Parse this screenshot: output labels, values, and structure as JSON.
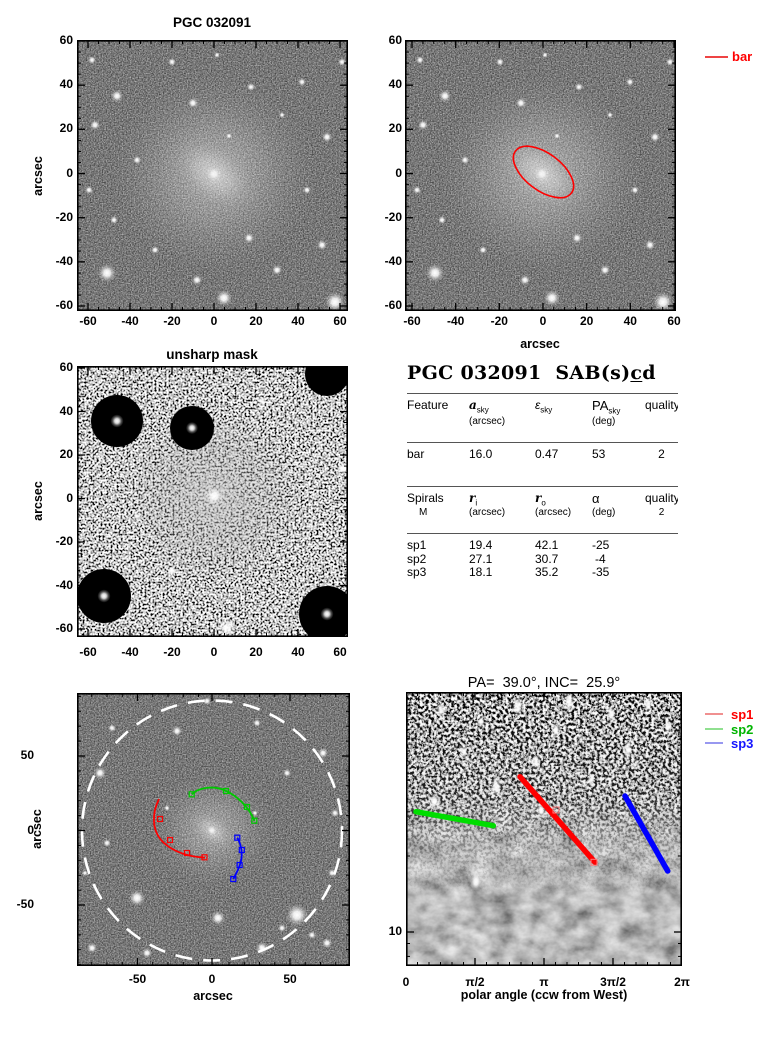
{
  "figure": {
    "p1": {
      "title": "PGC 032091",
      "ylabel": "arcsec",
      "yticks": [
        "60",
        "40",
        "20",
        "0",
        "-20",
        "-40",
        "-60"
      ],
      "xticks": [
        "-60",
        "-40",
        "-20",
        "0",
        "20",
        "40",
        "60"
      ]
    },
    "p2": {
      "xlabel": "arcsec",
      "legend_label": "bar",
      "yticks": [
        "60",
        "40",
        "20",
        "0",
        "-20",
        "-40",
        "-60"
      ],
      "xticks": [
        "-60",
        "-40",
        "-20",
        "0",
        "20",
        "40",
        "60"
      ]
    },
    "p3": {
      "title": "unsharp mask",
      "ylabel": "arcsec",
      "yticks": [
        "60",
        "40",
        "20",
        "0",
        "-20",
        "-40",
        "-60"
      ],
      "xticks": [
        "-60",
        "-40",
        "-20",
        "0",
        "20",
        "40",
        "60"
      ]
    },
    "table": {
      "title_pre": "PGC 032091  SAB(s)",
      "title_c": "c",
      "title_post": "d",
      "feature": {
        "h1": [
          "Feature",
          "a",
          "ε",
          "PA",
          "quality"
        ],
        "sub_a": "sky",
        "sub_e": "sky",
        "sub_pa": "sky",
        "unit_a": "(arcsec)",
        "unit_pa": "(deg)",
        "rows": [
          {
            "name": "bar",
            "a": "16.0",
            "e": "0.47",
            "pa": "53",
            "q": "2"
          }
        ]
      },
      "spirals": {
        "h1": [
          "Spirals",
          "r",
          "r",
          "α",
          "quality"
        ],
        "sub_ri": "i",
        "sub_ro": "o",
        "h2_m": "M",
        "unit_ri": "(arcsec)",
        "unit_ro": "(arcsec)",
        "unit_alpha": "(deg)",
        "h2_q": "2",
        "rows": [
          {
            "name": "sp1",
            "ri": "19.4",
            "ro": "42.1",
            "alpha": "-25"
          },
          {
            "name": "sp2",
            "ri": "27.1",
            "ro": "30.7",
            "alpha": "-4"
          },
          {
            "name": "sp3",
            "ri": "18.1",
            "ro": "35.2",
            "alpha": "-35"
          }
        ]
      }
    },
    "p5": {
      "ylabel": "arcsec",
      "xlabel": "arcsec",
      "yticks": [
        "50",
        "0",
        "-50"
      ],
      "xticks": [
        "-50",
        "0",
        "50"
      ]
    },
    "p6": {
      "title": "PA=  39.0°, INC=  25.9°",
      "xlabel": "polar angle (ccw from West)",
      "xticks": [
        "0",
        "π/2",
        "π",
        "3π/2",
        "2π"
      ],
      "yticks": [
        "10"
      ],
      "legend": [
        {
          "label": "sp1"
        },
        {
          "label": "sp2"
        },
        {
          "label": "sp3"
        }
      ]
    }
  },
  "colors": {
    "bar": "#ff0000",
    "sp1": "#ff0000",
    "sp2": "#00b400",
    "sp3": "#1414ff",
    "sp1_legend_line": "#f09090",
    "sp2_legend_line": "#90e090",
    "sp3_legend_line": "#9898f0",
    "dashed_circle": "#ffffff"
  },
  "chart_data": [
    {
      "type": "heatmap",
      "panel": "top-left",
      "title": "PGC 032091",
      "xlabel": "",
      "ylabel": "arcsec",
      "xlim": [
        -65,
        65
      ],
      "ylim": [
        -65,
        65
      ],
      "xticks": [
        -60,
        -40,
        -20,
        0,
        20,
        40,
        60
      ],
      "yticks": [
        60,
        40,
        20,
        0,
        -20,
        -40,
        -60
      ],
      "description": "grayscale sky image of galaxy PGC 032091 with diffuse disk and field stars"
    },
    {
      "type": "heatmap",
      "panel": "top-right",
      "title": "",
      "xlabel": "arcsec",
      "ylabel": "",
      "xlim": [
        -65,
        65
      ],
      "ylim": [
        -65,
        65
      ],
      "xticks": [
        -60,
        -40,
        -20,
        0,
        20,
        40,
        60
      ],
      "yticks": [
        60,
        40,
        20,
        0,
        -20,
        -40,
        -60
      ],
      "legend": [
        {
          "label": "bar",
          "color": "#ff0000"
        }
      ],
      "overlay_ellipse": {
        "name": "bar",
        "a_arcsec": 16.0,
        "ellipticity": 0.47,
        "pa_deg": 53,
        "center": [
          0,
          0
        ]
      }
    },
    {
      "type": "heatmap",
      "panel": "middle-left",
      "title": "unsharp mask",
      "xlabel": "",
      "ylabel": "arcsec",
      "xlim": [
        -65,
        65
      ],
      "ylim": [
        -65,
        65
      ],
      "xticks": [
        -60,
        -40,
        -20,
        0,
        20,
        40,
        60
      ],
      "yticks": [
        60,
        40,
        20,
        0,
        -20,
        -40,
        -60
      ],
      "description": "high-contrast unsharp-masked version of the same field"
    },
    {
      "type": "table",
      "panel": "middle-right",
      "title": "PGC 032091 SAB(s)cd",
      "sections": [
        {
          "columns": [
            "Feature",
            "a_sky (arcsec)",
            "ε_sky",
            "PA_sky (deg)",
            "quality"
          ],
          "rows": [
            [
              "bar",
              16.0,
              0.47,
              53,
              2
            ]
          ]
        },
        {
          "columns": [
            "Spirals M",
            "r_i (arcsec)",
            "r_o (arcsec)",
            "α (deg)",
            "quality 2"
          ],
          "rows": [
            [
              "sp1",
              19.4,
              42.1,
              -25
            ],
            [
              "sp2",
              27.1,
              30.7,
              -4
            ],
            [
              "sp3",
              18.1,
              35.2,
              -35
            ]
          ]
        }
      ]
    },
    {
      "type": "heatmap",
      "panel": "bottom-left",
      "title": "",
      "xlabel": "arcsec",
      "ylabel": "arcsec",
      "xlim": [
        -92,
        92
      ],
      "ylim": [
        -92,
        92
      ],
      "xticks": [
        -50,
        0,
        50
      ],
      "yticks": [
        50,
        0,
        -50
      ],
      "overlays": [
        {
          "name": "outer-circle",
          "shape": "dashed-circle",
          "radius_arcsec": 85,
          "color": "#ffffff"
        },
        {
          "name": "sp1",
          "shape": "spiral-arc",
          "color": "#ff0000",
          "r_inner": 19.4,
          "r_outer": 42.1
        },
        {
          "name": "sp2",
          "shape": "spiral-arc",
          "color": "#00c000",
          "r_inner": 27.1,
          "r_outer": 30.7
        },
        {
          "name": "sp3",
          "shape": "spiral-arc",
          "color": "#0000ff",
          "r_inner": 18.1,
          "r_outer": 35.2
        }
      ]
    },
    {
      "type": "heatmap",
      "panel": "bottom-right",
      "title": "PA=  39.0°, INC=  25.9°",
      "pa_deg": 39.0,
      "inc_deg": 25.9,
      "xlabel": "polar angle (ccw from West)",
      "ylabel": "",
      "yscale": "log",
      "xticks": [
        "0",
        "π/2",
        "π",
        "3π/2",
        "2π"
      ],
      "yticks": [
        10
      ],
      "ylim_approx": [
        7.5,
        90
      ],
      "legend_position": "right-outside",
      "legend": [
        {
          "label": "sp1",
          "color": "#ff0000"
        },
        {
          "label": "sp2",
          "color": "#00b400"
        },
        {
          "label": "sp3",
          "color": "#1414ff"
        }
      ],
      "series": [
        {
          "name": "sp1",
          "type": "line",
          "r_range": [
            42.1,
            19.4
          ],
          "pitch_deg": -25,
          "x_range_rad": [
            "~0.83π",
            "~1.37π"
          ]
        },
        {
          "name": "sp2",
          "type": "line",
          "r_range": [
            27.1,
            30.7
          ],
          "pitch_deg": -4,
          "x_range_rad": [
            "~0.07π",
            "~0.63π"
          ]
        },
        {
          "name": "sp3",
          "type": "line",
          "r_range": [
            35.2,
            18.1
          ],
          "pitch_deg": -35,
          "x_range_rad": [
            "~1.59π",
            "~1.90π"
          ]
        }
      ]
    }
  ]
}
